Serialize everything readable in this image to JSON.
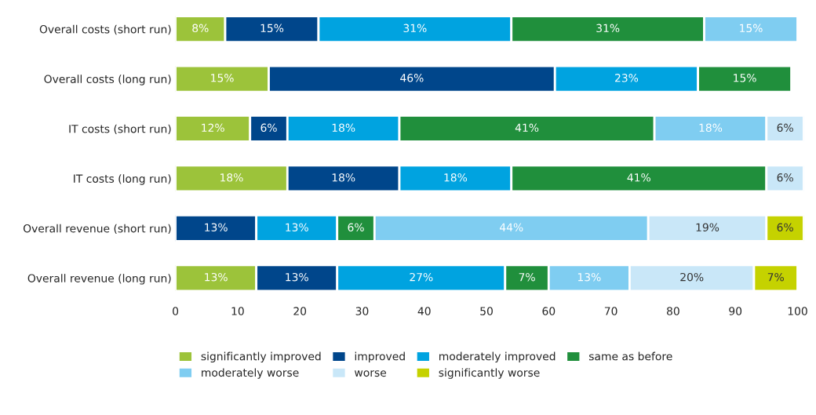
{
  "chart_data": {
    "type": "bar",
    "orientation": "horizontal",
    "stacked": true,
    "categories": [
      "Overall costs (short run)",
      "Overall costs (long run)",
      "IT costs (short run)",
      "IT costs (long run)",
      "Overall revenue (short run)",
      "Overall revenue (long run)"
    ],
    "series": [
      {
        "name": "significantly improved",
        "color": "#9cc33a",
        "values": [
          8,
          15,
          12,
          18,
          null,
          13
        ],
        "value_labels": [
          "8%",
          "15%",
          "12%",
          "18%",
          null,
          "13%"
        ]
      },
      {
        "name": "improved",
        "color": "#00468b",
        "values": [
          15,
          46,
          6,
          18,
          13,
          13
        ],
        "value_labels": [
          "15%",
          "46%",
          "6%",
          "18%",
          "13%",
          "13%"
        ]
      },
      {
        "name": "moderately improved",
        "color": "#00a3e0",
        "values": [
          31,
          23,
          18,
          18,
          13,
          27
        ],
        "value_labels": [
          "31%",
          "23%",
          "18%",
          "18%",
          "13%",
          "27%"
        ]
      },
      {
        "name": "same as before",
        "color": "#208f3c",
        "values": [
          31,
          15,
          41,
          41,
          6,
          7
        ],
        "value_labels": [
          "31%",
          "15%",
          "41%",
          "41%",
          "6%",
          "7%"
        ]
      },
      {
        "name": "moderately worse",
        "color": "#7fcdf1",
        "values": [
          15,
          null,
          18,
          null,
          44,
          13
        ],
        "value_labels": [
          "15%",
          null,
          "18%",
          null,
          "44%",
          "13%"
        ]
      },
      {
        "name": "worse",
        "color": "#c9e7f8",
        "values": [
          null,
          null,
          6,
          6,
          19,
          20
        ],
        "value_labels": [
          null,
          null,
          "6%",
          "6%",
          "19%",
          "20%"
        ]
      },
      {
        "name": "significantly worse",
        "color": "#c5d200",
        "values": [
          null,
          null,
          null,
          null,
          6,
          7
        ],
        "value_labels": [
          null,
          null,
          null,
          null,
          "6%",
          "7%"
        ]
      }
    ],
    "xlim": [
      0,
      101
    ],
    "xticks": [
      0,
      10,
      20,
      30,
      40,
      50,
      60,
      70,
      80,
      90,
      100
    ],
    "grid": false,
    "legend": "bottom"
  }
}
